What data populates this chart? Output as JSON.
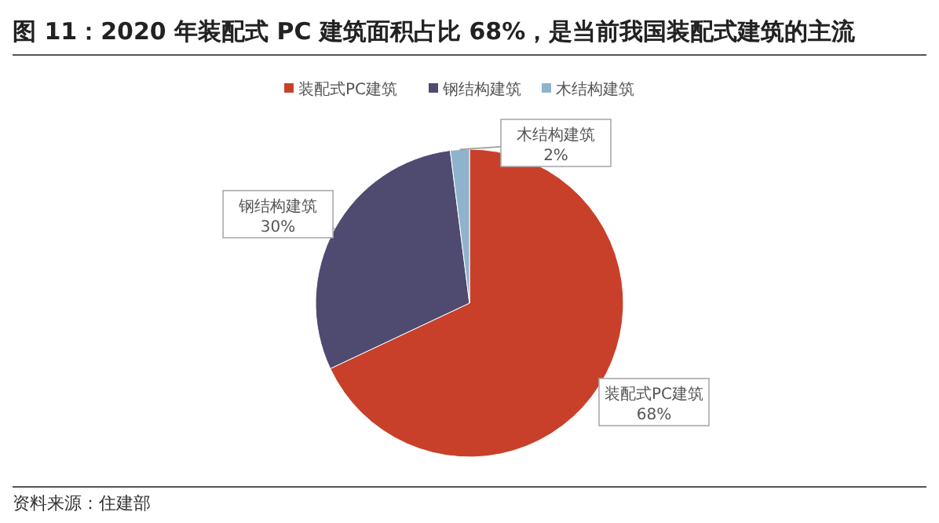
{
  "chart_data": {
    "type": "pie",
    "title": "图 11：2020 年装配式 PC 建筑面积占比 68%，是当前我国装配式建筑的主流",
    "categories": [
      "装配式PC建筑",
      "钢结构建筑",
      "木结构建筑"
    ],
    "values": [
      68,
      30,
      2
    ],
    "colors": [
      "#c8402a",
      "#4f4a70",
      "#8fb3cc"
    ],
    "value_labels": [
      "68%",
      "30%",
      "2%"
    ],
    "legend": "top",
    "annotations": [
      "资料来源：住建部"
    ]
  }
}
